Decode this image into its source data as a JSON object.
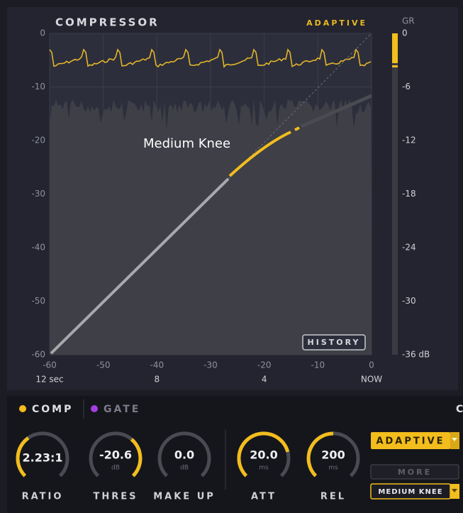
{
  "header": {
    "title": "COMPRESSOR",
    "mode": "ADAPTIVE"
  },
  "graph": {
    "y_labels": [
      "0",
      "-10",
      "-20",
      "-30",
      "-40",
      "-50",
      "-60"
    ],
    "x_labels": [
      "-60",
      "-50",
      "-40",
      "-30",
      "-20",
      "-10",
      "0"
    ],
    "time_labels": [
      "12 sec",
      "8",
      "4",
      "NOW"
    ],
    "annotation": "Medium Knee",
    "history_button": "HISTORY"
  },
  "meter": {
    "label": "GR",
    "labels": [
      "0",
      "-6",
      "-12",
      "-18",
      "-24",
      "-30",
      "-36 dB"
    ]
  },
  "tabs": [
    {
      "label": "COMP"
    },
    {
      "label": "GATE"
    },
    {
      "label": "C"
    }
  ],
  "knobs": [
    {
      "label": "RATIO",
      "value": "2.23:1"
    },
    {
      "label": "THRES",
      "value": "-20.6",
      "unit": "dB"
    },
    {
      "label": "MAKE UP",
      "value": "0.0",
      "unit": "dB"
    },
    {
      "label": "ATT",
      "value": "20.0",
      "unit": "ms"
    },
    {
      "label": "REL",
      "value": "200",
      "unit": "ms"
    }
  ],
  "buttons": {
    "mode": "ADAPTIVE",
    "more": "MORE",
    "knee": "MEDIUM KNEE"
  }
}
